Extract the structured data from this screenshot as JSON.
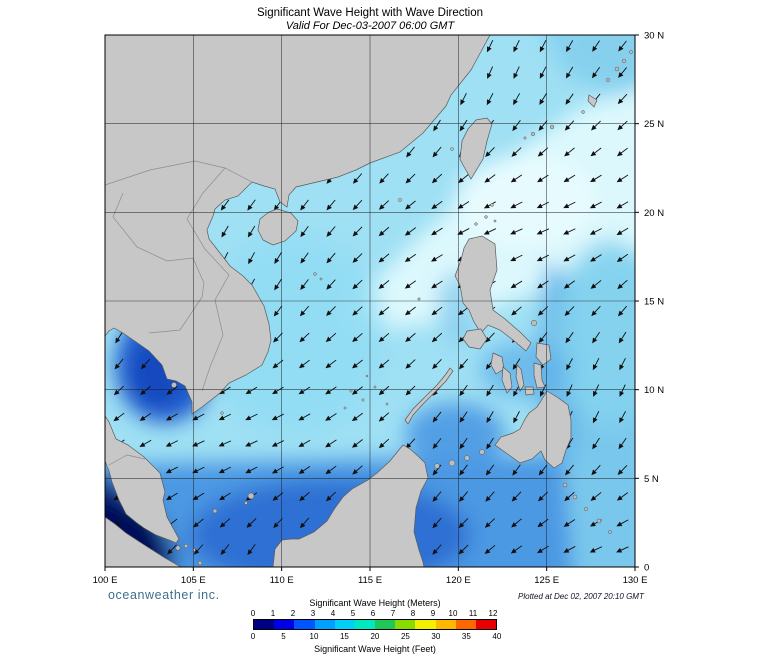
{
  "title": "Significant Wave Height with Wave Direction",
  "subtitle": "Valid For Dec-03-2007 06:00 GMT",
  "branding": "oceanweather inc.",
  "plotted_at": "Plotted at Dec 02, 2007 20:10 GMT",
  "map": {
    "lon_ticks": [
      "100 E",
      "105 E",
      "110 E",
      "115 E",
      "120 E",
      "125 E",
      "130 E"
    ],
    "lat_ticks": [
      "30 N",
      "25 N",
      "20 N",
      "15 N",
      "10 N",
      "5 N",
      "0"
    ],
    "lon_range": [
      100,
      130
    ],
    "lat_range": [
      0,
      30
    ],
    "wave_direction": "southwest",
    "land_color": "#c7c7c7",
    "arrow_color": "#101010"
  },
  "legend": {
    "meters_label": "Significant Wave Height (Meters)",
    "feet_label": "Significant Wave Height (Feet)",
    "meters_ticks": [
      "0",
      "1",
      "2",
      "3",
      "4",
      "5",
      "6",
      "7",
      "8",
      "9",
      "10",
      "11",
      "12"
    ],
    "feet_ticks": [
      "0",
      "5",
      "10",
      "15",
      "20",
      "25",
      "30",
      "35",
      "40"
    ],
    "colors": [
      "#000082",
      "#0000e8",
      "#0055ff",
      "#00a0ff",
      "#00d0f8",
      "#00e8c0",
      "#20c858",
      "#88dc00",
      "#f0f000",
      "#ffb800",
      "#ff6800",
      "#e80000"
    ]
  }
}
